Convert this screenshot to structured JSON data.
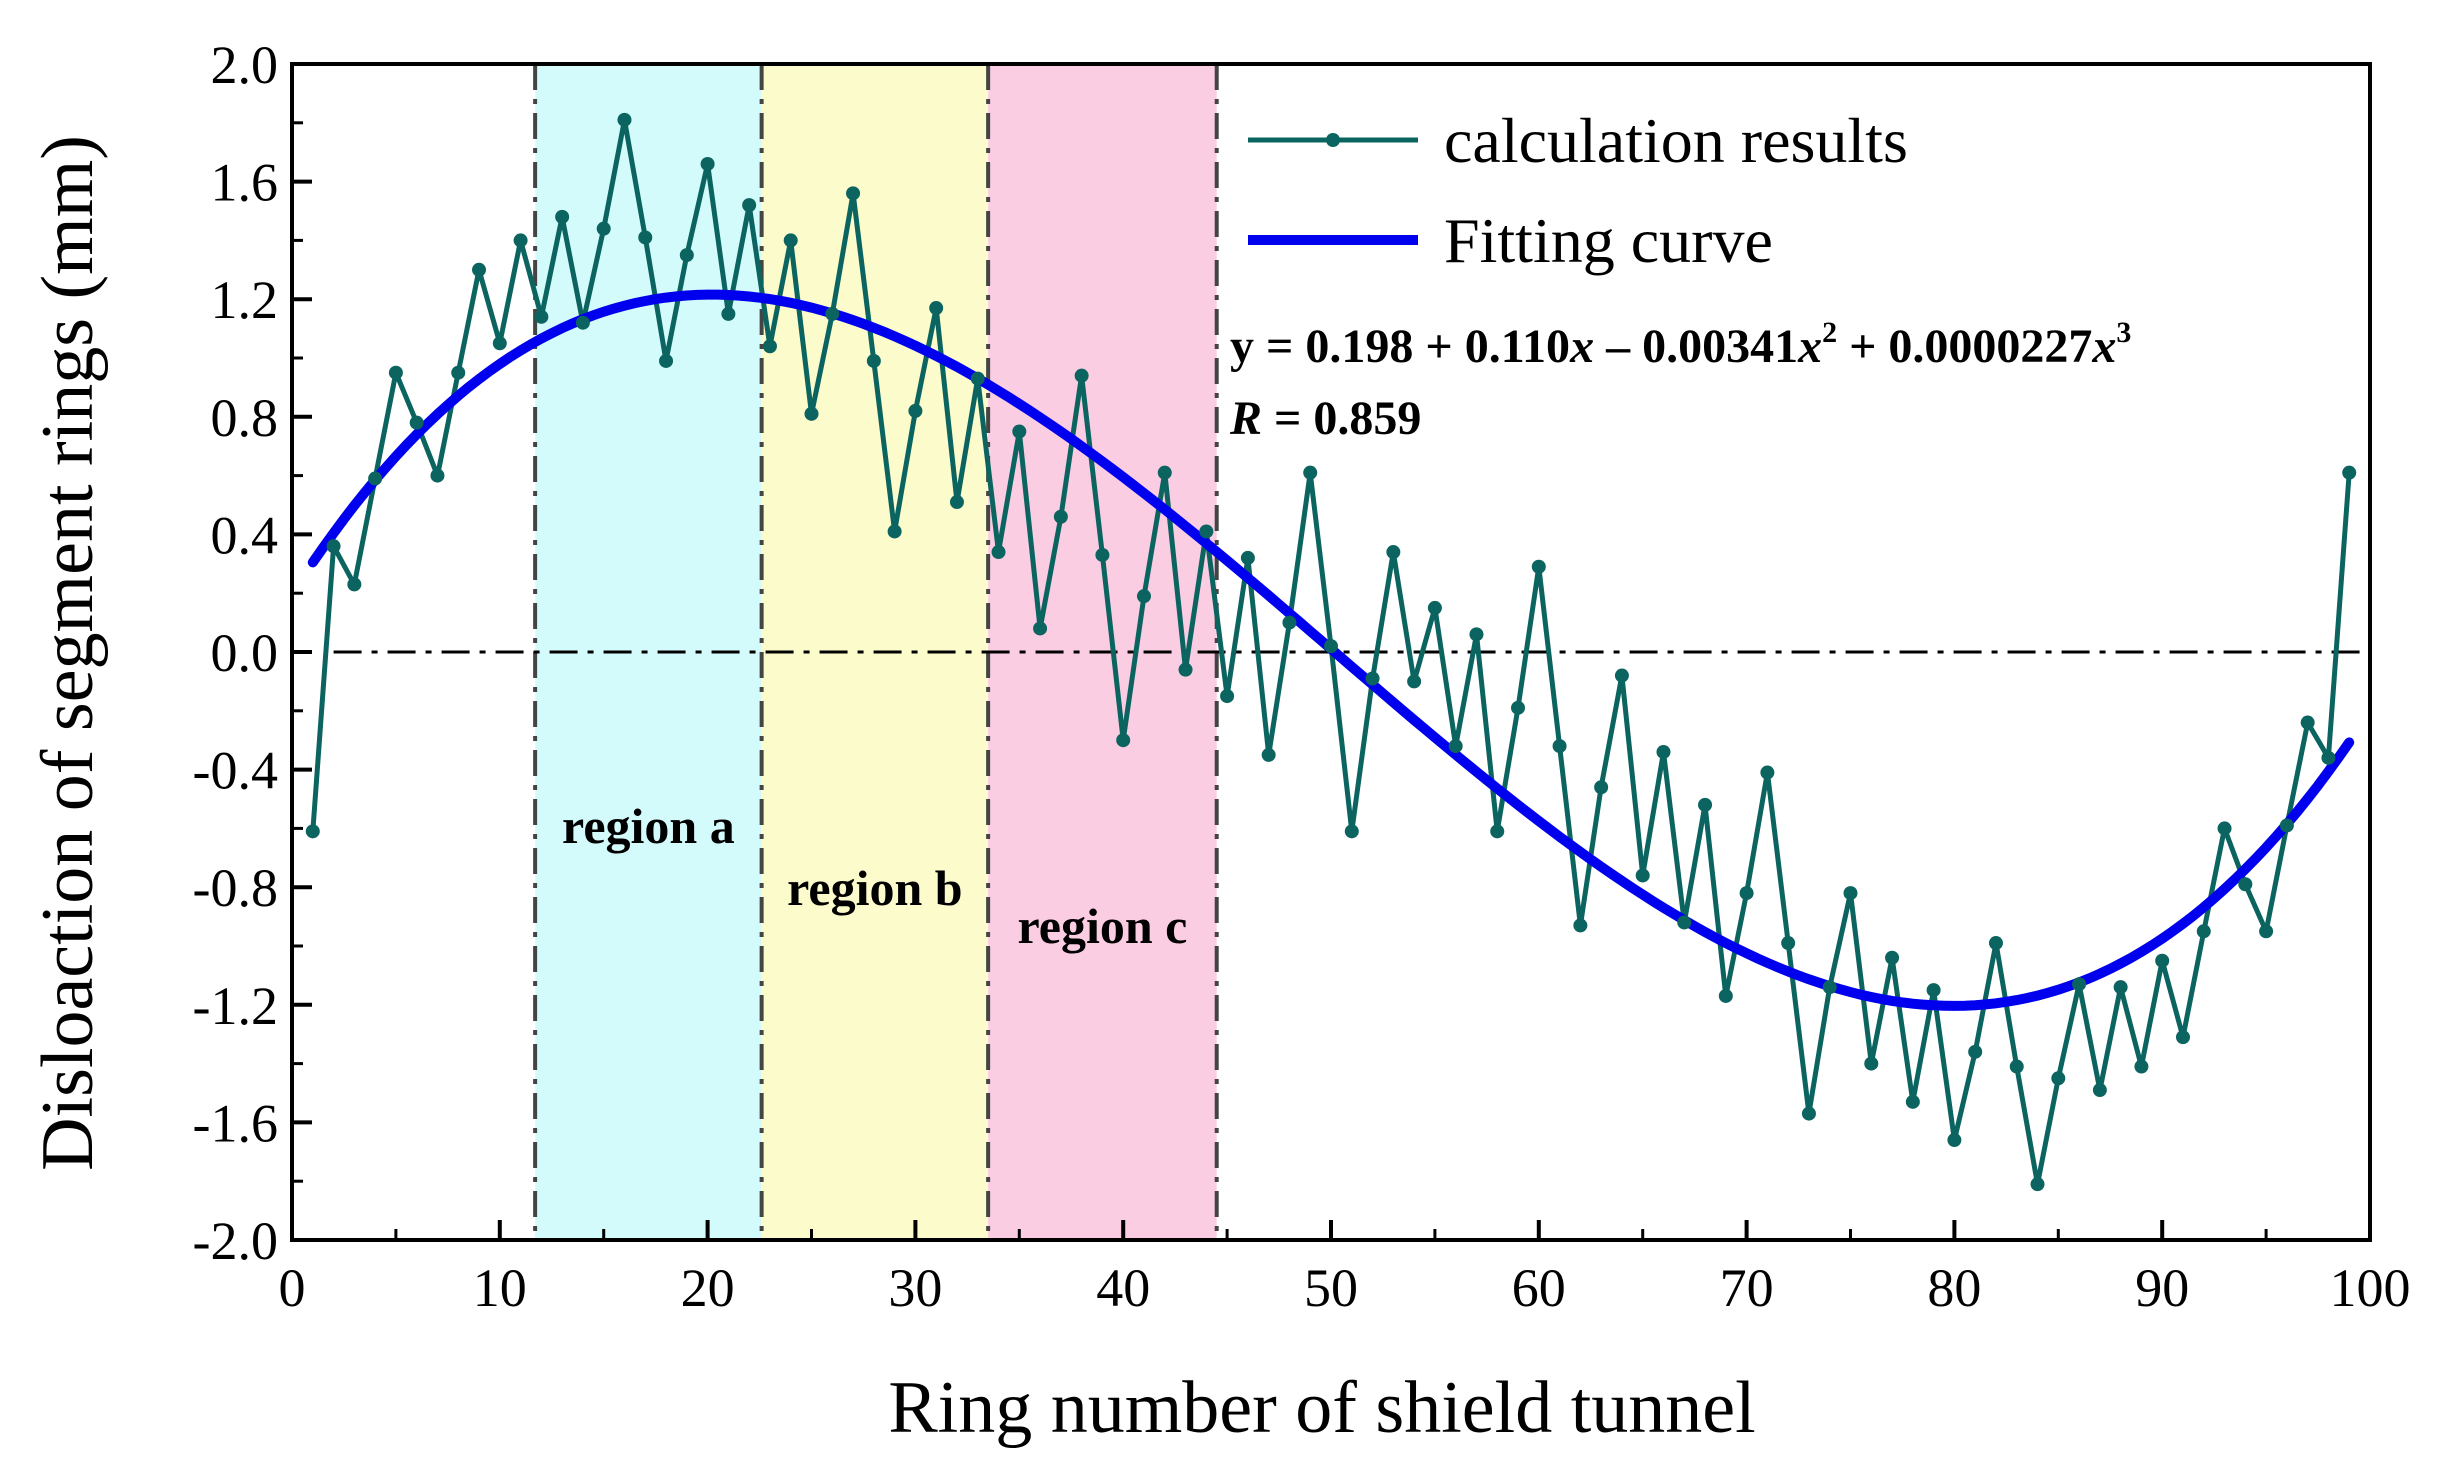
{
  "chart_data": {
    "type": "line",
    "xlabel": "Ring number of shield tunnel",
    "ylabel": "Disloaction of segment rings (mm)",
    "xlim": [
      0,
      100
    ],
    "ylim": [
      -2.0,
      2.0
    ],
    "xticks": [
      0,
      10,
      20,
      30,
      40,
      50,
      60,
      70,
      80,
      90,
      100
    ],
    "xtick_labels": [
      "0",
      "10",
      "20",
      "30",
      "40",
      "50",
      "60",
      "70",
      "80",
      "90",
      "100"
    ],
    "yticks": [
      2.0,
      1.6,
      1.2,
      0.8,
      0.4,
      0.0,
      -0.4,
      -0.8,
      -1.2,
      -1.6,
      -2.0
    ],
    "ytick_labels": [
      "2.0",
      "1.6",
      "1.2",
      "0.8",
      "0.4",
      "0.0",
      "-0.4",
      "-0.8",
      "-1.2",
      "-1.6",
      "-2.0"
    ],
    "grid": false,
    "reference_line": {
      "y": 0.0,
      "style": "dash-dot"
    },
    "regions": [
      {
        "label": "region a",
        "x_start": 11.7,
        "x_end": 22.6,
        "color": "#d4fbfc",
        "label_y": -0.65
      },
      {
        "label": "region b",
        "x_start": 22.6,
        "x_end": 33.5,
        "color": "#fbfbcb",
        "label_y": -0.86
      },
      {
        "label": "region c",
        "x_start": 33.5,
        "x_end": 44.5,
        "color": "#fbcde3",
        "label_y": -0.99
      }
    ],
    "series": [
      {
        "name": "calculation results",
        "color": "#0c6460",
        "marker": "circle",
        "x": [
          1,
          2,
          3,
          4,
          5,
          6,
          7,
          8,
          9,
          10,
          11,
          12,
          13,
          14,
          15,
          16,
          17,
          18,
          19,
          20,
          21,
          22,
          23,
          24,
          25,
          26,
          27,
          28,
          29,
          30,
          31,
          32,
          33,
          34,
          35,
          36,
          37,
          38,
          39,
          40,
          41,
          42,
          43,
          44,
          45,
          46,
          47,
          48,
          49,
          50,
          51,
          52,
          53,
          54,
          55,
          56,
          57,
          58,
          59,
          60,
          61,
          62,
          63,
          64,
          65,
          66,
          67,
          68,
          69,
          70,
          71,
          72,
          73,
          74,
          75,
          76,
          77,
          78,
          79,
          80,
          81,
          82,
          83,
          84,
          85,
          86,
          87,
          88,
          89,
          90,
          91,
          92,
          93,
          94,
          95,
          96,
          97,
          98,
          99
        ],
        "values": [
          -0.61,
          0.36,
          0.23,
          0.59,
          0.95,
          0.78,
          0.6,
          0.95,
          1.3,
          1.05,
          1.4,
          1.14,
          1.48,
          1.12,
          1.44,
          1.81,
          1.41,
          0.99,
          1.35,
          1.66,
          1.15,
          1.52,
          1.04,
          1.4,
          0.81,
          1.15,
          1.56,
          0.99,
          0.41,
          0.82,
          1.17,
          0.51,
          0.93,
          0.34,
          0.75,
          0.08,
          0.46,
          0.94,
          0.33,
          -0.3,
          0.19,
          0.61,
          -0.06,
          0.41,
          -0.15,
          0.32,
          -0.35,
          0.1,
          0.61,
          0.02,
          -0.61,
          -0.09,
          0.34,
          -0.1,
          0.15,
          -0.32,
          0.06,
          -0.61,
          -0.19,
          0.29,
          -0.32,
          -0.93,
          -0.46,
          -0.08,
          -0.76,
          -0.34,
          -0.92,
          -0.52,
          -1.17,
          -0.82,
          -0.41,
          -0.99,
          -1.57,
          -1.14,
          -0.82,
          -1.4,
          -1.04,
          -1.53,
          -1.15,
          -1.66,
          -1.36,
          -0.99,
          -1.41,
          -1.81,
          -1.45,
          -1.13,
          -1.49,
          -1.14,
          -1.41,
          -1.05,
          -1.31,
          -0.95,
          -0.6,
          -0.79,
          -0.95,
          -0.59,
          -0.24,
          -0.36,
          0.61
        ]
      },
      {
        "name": "Fitting curve",
        "color": "#0000ee",
        "marker": "none",
        "equation": {
          "coefficients": [
            0.198,
            0.11,
            -0.00341,
            2.27e-05
          ],
          "x_range": [
            1,
            99
          ]
        }
      }
    ],
    "legend": {
      "position": "top-right",
      "entries": [
        "calculation results",
        "Fitting curve"
      ]
    },
    "annotation": {
      "y_eq": "y = 0.198 + 0.110",
      "x1": "x",
      "minus": " – 0.00341",
      "x2": "x",
      "exp2": "2",
      "plus": " + 0.0000227",
      "x3": "x",
      "exp3": "3",
      "r_symbol": "R",
      "r_value": " = 0.859"
    }
  }
}
